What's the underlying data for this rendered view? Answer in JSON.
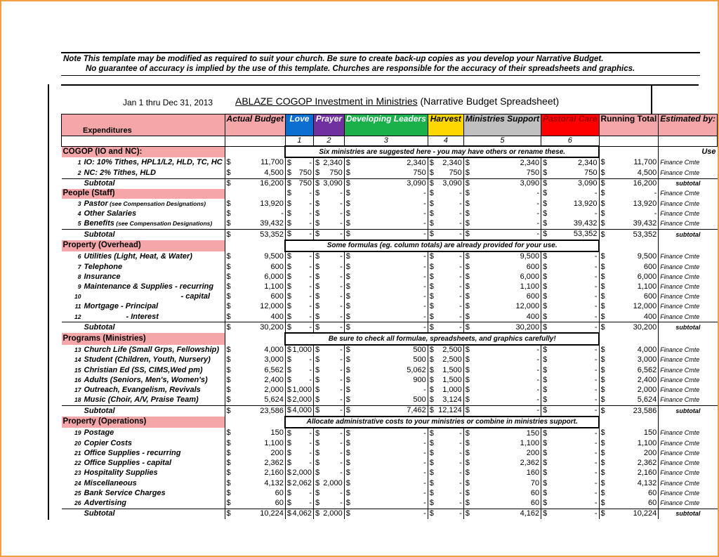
{
  "note_line1": "Note  This template may be modified as required to suit your church.  Be sure to create back-up copies as you develop your Narrative Budget.",
  "note_line2": "No guarantee of accuracy is implied by the use of this template.  Churches are responsible for the accuracy of their spreadsheets and graphics.",
  "date_range": "Jan 1 thru Dec 31, 2013",
  "title_underlined": "ABLAZE COGOP  Investment in Ministries",
  "title_rest": " (Narrative Budget Spreadsheet)",
  "columns": [
    {
      "label": "Expenditures",
      "bg": "#f4a6a8",
      "fg": "#000000",
      "num": ""
    },
    {
      "label": "Actual Budget",
      "bg": "#f4a6a8",
      "fg": "#000000",
      "num": ""
    },
    {
      "label": "Love",
      "bg": "#0a6fd0",
      "fg": "#ffffff",
      "num": "1"
    },
    {
      "label": "Prayer",
      "bg": "#7030a0",
      "fg": "#ffffff",
      "num": "2"
    },
    {
      "label": "Developing Leaders",
      "bg": "#1ab04a",
      "fg": "#ffffff",
      "num": "3"
    },
    {
      "label": "Harvest",
      "bg": "#ffd700",
      "fg": "#000000",
      "num": "4"
    },
    {
      "label": "Ministries Support",
      "bg": "#c0c0c0",
      "fg": "#000000",
      "num": "5"
    },
    {
      "label": "Pastoral Care",
      "bg": "#ff0000",
      "fg": "#a00000",
      "num": "6"
    },
    {
      "label": "Running Total",
      "bg": "#f4a6a8",
      "fg": "#000000",
      "num": ""
    },
    {
      "label": "Estimated by:",
      "bg": "#f4a6a8",
      "fg": "#000000",
      "num": ""
    }
  ],
  "rows": [
    {
      "type": "sec",
      "label": "COGOP (IO and NC):",
      "note": "Six ministries are suggested here - you may have others or rename these.",
      "est": "Use"
    },
    {
      "type": "item",
      "num": "1",
      "label": "IO: 10% Tithes, HPL1/L2, HLD, TC, HC",
      "v": [
        "11,700",
        "-",
        "2,340",
        "2,340",
        "2,340",
        "2,340",
        "2,340",
        "11,700"
      ],
      "est": "Finance Cmte"
    },
    {
      "type": "item",
      "num": "2",
      "label": "NC: 2% Tithes, HLD",
      "v": [
        "4,500",
        "750",
        "750",
        "750",
        "750",
        "750",
        "750",
        "4,500"
      ],
      "est": "Finance Cmte"
    },
    {
      "type": "sub",
      "label": "Subtotal",
      "v": [
        "16,200",
        "750",
        "3,090",
        "3,090",
        "3,090",
        "3,090",
        "3,090",
        "16,200"
      ],
      "est": "subtotal"
    },
    {
      "type": "sec",
      "label": "People (Staff)",
      "v": [
        "",
        "-",
        "-",
        "-",
        "-",
        "-",
        "-",
        "-"
      ],
      "est": "Finance Cmte"
    },
    {
      "type": "item",
      "num": "3",
      "label": "Pastor",
      "small": "(see Compensation Designations)",
      "v": [
        "13,920",
        "-",
        "-",
        "-",
        "-",
        "-",
        "13,920",
        "13,920"
      ],
      "est": "Finance Cmte"
    },
    {
      "type": "item",
      "num": "4",
      "label": "Other Salaries",
      "v": [
        "-",
        "-",
        "-",
        "-",
        "-",
        "-",
        "-",
        "-"
      ],
      "est": "Finance Cmte"
    },
    {
      "type": "item",
      "num": "5",
      "label": "Benefits",
      "small": "(see Compensation Designations)",
      "v": [
        "39,432",
        "-",
        "-",
        "-",
        "-",
        "-",
        "39,432",
        "39,432"
      ],
      "est": "Finance Cmte"
    },
    {
      "type": "sub",
      "label": "Subtotal",
      "v": [
        "53,352",
        "-",
        "-",
        "-",
        "-",
        "-",
        "53,352",
        "53,352"
      ],
      "est": "subtotal"
    },
    {
      "type": "sec",
      "label": "Property (Overhead)",
      "note": "Some formulas (eg. column totals) are already provided for your use."
    },
    {
      "type": "item",
      "num": "6",
      "label": "Utilities (Light, Heat, & Water)",
      "v": [
        "9,500",
        "-",
        "-",
        "-",
        "-",
        "9,500",
        "-",
        "9,500"
      ],
      "est": "Finance Cmte"
    },
    {
      "type": "item",
      "num": "7",
      "label": "Telephone",
      "v": [
        "600",
        "-",
        "-",
        "-",
        "-",
        "600",
        "-",
        "600"
      ],
      "est": "Finance Cmte"
    },
    {
      "type": "item",
      "num": "8",
      "label": "Insurance",
      "v": [
        "6,000",
        "-",
        "-",
        "-",
        "-",
        "6,000",
        "-",
        "6,000"
      ],
      "est": "Finance Cmte"
    },
    {
      "type": "item",
      "num": "9",
      "label": "Maintenance & Supplies - recurring",
      "v": [
        "1,100",
        "-",
        "-",
        "-",
        "-",
        "1,100",
        "-",
        "1,100"
      ],
      "est": "Finance Cmte"
    },
    {
      "type": "item",
      "num": "10",
      "label": "- capital",
      "indent": 138,
      "v": [
        "600",
        "-",
        "-",
        "-",
        "-",
        "600",
        "-",
        "600"
      ],
      "est": "Finance Cmte"
    },
    {
      "type": "item",
      "num": "11",
      "label": "Mortgage  - Principal",
      "v": [
        "12,000",
        "-",
        "-",
        "-",
        "-",
        "12,000",
        "-",
        "12,000"
      ],
      "est": "Finance Cmte"
    },
    {
      "type": "item",
      "num": "12",
      "label": "- Interest",
      "indent": 60,
      "v": [
        "400",
        "-",
        "-",
        "-",
        "-",
        "400",
        "-",
        "400"
      ],
      "est": "Finance Cmte"
    },
    {
      "type": "sub",
      "label": "Subtotal",
      "v": [
        "30,200",
        "-",
        "-",
        "-",
        "-",
        "30,200",
        "-",
        "30,200"
      ],
      "est": "subtotal"
    },
    {
      "type": "sec",
      "label": "Programs (Ministries)",
      "note": "Be sure to check all formulae, spreadsheets, and graphics carefully!"
    },
    {
      "type": "item",
      "num": "13",
      "label": "Church Life (Small Grps, Fellowship)",
      "v": [
        "4,000",
        "1,000",
        "-",
        "500",
        "2,500",
        "-",
        "-",
        "4,000"
      ],
      "est": "Finance Cmte"
    },
    {
      "type": "item",
      "num": "14",
      "label": "Student (Children, Youth, Nursery)",
      "v": [
        "3,000",
        "-",
        "-",
        "500",
        "2,500",
        "-",
        "-",
        "3,000"
      ],
      "est": "Finance Cmte"
    },
    {
      "type": "item",
      "num": "15",
      "label": "Christian Ed (SS, CIMS,Wed pm)",
      "v": [
        "6,562",
        "-",
        "-",
        "5,062",
        "1,500",
        "-",
        "-",
        "6,562"
      ],
      "est": "Finance Cmte"
    },
    {
      "type": "item",
      "num": "16",
      "label": "Adults (Seniors, Men's, Women's)",
      "v": [
        "2,400",
        "-",
        "-",
        "900",
        "1,500",
        "-",
        "-",
        "2,400"
      ],
      "est": "Finance Cmte"
    },
    {
      "type": "item",
      "num": "17",
      "label": "Outreach, Evangelism, Revivals",
      "v": [
        "2,000",
        "1,000",
        "-",
        "-",
        "1,000",
        "-",
        "-",
        "2,000"
      ],
      "est": "Finance Cmte"
    },
    {
      "type": "item",
      "num": "18",
      "label": "Music (Choir, A/V, Praise Team)",
      "v": [
        "5,624",
        "2,000",
        "-",
        "500",
        "3,124",
        "-",
        "-",
        "5,624"
      ],
      "est": "Finance Cmte"
    },
    {
      "type": "sub",
      "label": "Subtotal",
      "v": [
        "23,586",
        "4,000",
        "-",
        "7,462",
        "12,124",
        "-",
        "-",
        "23,586"
      ],
      "est": "subtotal"
    },
    {
      "type": "sec",
      "label": "Property (Operations)",
      "note": "Allocate administrative costs to your ministries or combine in ministries support."
    },
    {
      "type": "item",
      "num": "19",
      "label": "Postage",
      "v": [
        "150",
        "-",
        "-",
        "-",
        "-",
        "150",
        "-",
        "150"
      ],
      "est": "Finance Cmte"
    },
    {
      "type": "item",
      "num": "20",
      "label": "Copier Costs",
      "v": [
        "1,100",
        "-",
        "-",
        "-",
        "-",
        "1,100",
        "-",
        "1,100"
      ],
      "est": "Finance Cmte"
    },
    {
      "type": "item",
      "num": "21",
      "label": "Office Supplies - recurring",
      "v": [
        "200",
        "-",
        "-",
        "-",
        "-",
        "200",
        "-",
        "200"
      ],
      "est": "Finance Cmte"
    },
    {
      "type": "item",
      "num": "22",
      "label": "Office Supplies - capital",
      "v": [
        "2,362",
        "-",
        "-",
        "-",
        "-",
        "2,362",
        "-",
        "2,362"
      ],
      "est": "Finance Cmte"
    },
    {
      "type": "item",
      "num": "23",
      "label": "Hospitality Supplies",
      "v": [
        "2,160",
        "2,000",
        "-",
        "-",
        "-",
        "160",
        "-",
        "2,160"
      ],
      "est": "Finance Cmte"
    },
    {
      "type": "item",
      "num": "24",
      "label": "Miscellaneous",
      "v": [
        "4,132",
        "2,062",
        "2,000",
        "-",
        "-",
        "70",
        "-",
        "4,132"
      ],
      "est": "Finance Cmte"
    },
    {
      "type": "item",
      "num": "25",
      "label": "Bank Service Charges",
      "v": [
        "60",
        "-",
        "-",
        "-",
        "-",
        "60",
        "-",
        "60"
      ],
      "est": "Finance Cmte"
    },
    {
      "type": "item",
      "num": "26",
      "label": "Advertising",
      "v": [
        "60",
        "-",
        "-",
        "-",
        "-",
        "60",
        "-",
        "60"
      ],
      "est": "Finance Cmte"
    },
    {
      "type": "sub",
      "label": "Subtotal",
      "v": [
        "10,224",
        "4,062",
        "2,000",
        "-",
        "-",
        "4,162",
        "-",
        "10,224"
      ],
      "est": "subtotal"
    }
  ],
  "currency": "$"
}
